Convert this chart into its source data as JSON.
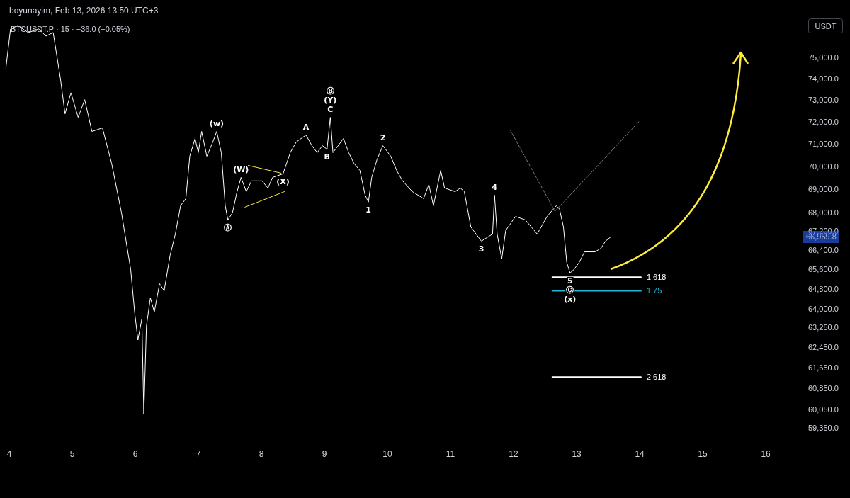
{
  "chart_data": {
    "type": "line",
    "title": "BTCUSDT.P · 15 · −36.0 (−0.05%)",
    "subtitle": "boyunayim, Feb 13, 2026 13:50 UTC+3",
    "marker": "none",
    "log": "y",
    "xlim": [
      "2026-02-03T20:30",
      "2026-02-16T14:00"
    ],
    "xticks": [
      {
        "value": "2026-02-04",
        "label": "4"
      },
      {
        "value": "2026-02-05",
        "label": "5"
      },
      {
        "value": "2026-02-06",
        "label": "6"
      },
      {
        "value": "2026-02-07",
        "label": "7"
      },
      {
        "value": "2026-02-08",
        "label": "8"
      },
      {
        "value": "2026-02-09",
        "label": "9"
      },
      {
        "value": "2026-02-10",
        "label": "10"
      },
      {
        "value": "2026-02-11",
        "label": "11"
      },
      {
        "value": "2026-02-12",
        "label": "12"
      },
      {
        "value": "2026-02-13",
        "label": "13"
      },
      {
        "value": "2026-02-14",
        "label": "14"
      },
      {
        "value": "2026-02-15",
        "label": "15"
      },
      {
        "value": "2026-02-16",
        "label": "16"
      }
    ],
    "ylim": [
      58800,
      77000
    ],
    "yticks": [
      {
        "value": 59350,
        "label": "59,350.0"
      },
      {
        "value": 60050,
        "label": "60,050.0"
      },
      {
        "value": 60850,
        "label": "60,850.0"
      },
      {
        "value": 61650,
        "label": "61,650.0"
      },
      {
        "value": 62450,
        "label": "62,450.0"
      },
      {
        "value": 63250,
        "label": "63,250.0"
      },
      {
        "value": 64000,
        "label": "64,000.0"
      },
      {
        "value": 64800,
        "label": "64,800.0"
      },
      {
        "value": 65600,
        "label": "65,600.0"
      },
      {
        "value": 66400,
        "label": "66,400.0"
      },
      {
        "value": 67200,
        "label": "67,200.0"
      },
      {
        "value": 68000,
        "label": "68,000.0"
      },
      {
        "value": 69000,
        "label": "69,000.0"
      },
      {
        "value": 70000,
        "label": "70,000.0"
      },
      {
        "value": 71000,
        "label": "71,000.0"
      },
      {
        "value": 72000,
        "label": "72,000.0"
      },
      {
        "value": 73000,
        "label": "73,000.0"
      },
      {
        "value": 74000,
        "label": "74,000.0"
      },
      {
        "value": 75000,
        "label": "75,000.0"
      }
    ],
    "ref_lines": [
      {
        "axis": "y",
        "value": 66959.8,
        "label": "66,959.8",
        "color": "#2962ff",
        "line_style": "dotted"
      }
    ],
    "series": [
      {
        "color": "#ffffff",
        "x": [
          "2026-02-03T22:45",
          "2026-02-04T00:30",
          "2026-02-04T03:15",
          "2026-02-04T07:15",
          "2026-02-04T11:15",
          "2026-02-04T14:00",
          "2026-02-04T16:45",
          "2026-02-04T19:30",
          "2026-02-04T21:15",
          "2026-02-04T23:30",
          "2026-02-05T02:15",
          "2026-02-05T04:45",
          "2026-02-05T07:30",
          "2026-02-05T11:30",
          "2026-02-05T15:00",
          "2026-02-05T18:45",
          "2026-02-05T22:15",
          "2026-02-05T23:45",
          "2026-02-06T01:00",
          "2026-02-06T02:30",
          "2026-02-06T03:15",
          "2026-02-06T04:15",
          "2026-02-06T05:45",
          "2026-02-06T07:15",
          "2026-02-06T09:15",
          "2026-02-06T11:00",
          "2026-02-06T13:15",
          "2026-02-06T15:15",
          "2026-02-06T17:15",
          "2026-02-06T19:15",
          "2026-02-06T20:45",
          "2026-02-06T22:45",
          "2026-02-07T00:00",
          "2026-02-07T01:15",
          "2026-02-07T03:15",
          "2026-02-07T05:30",
          "2026-02-07T07:00",
          "2026-02-07T08:45",
          "2026-02-07T10:15",
          "2026-02-07T11:15",
          "2026-02-07T13:00",
          "2026-02-07T14:45",
          "2026-02-07T16:15",
          "2026-02-07T18:15",
          "2026-02-07T20:15",
          "2026-02-08T00:15",
          "2026-02-08T02:30",
          "2026-02-08T04:15",
          "2026-02-08T08:15",
          "2026-02-08T11:00",
          "2026-02-08T13:15",
          "2026-02-08T17:00",
          "2026-02-08T19:15",
          "2026-02-08T21:15",
          "2026-02-08T23:15",
          "2026-02-09T01:00",
          "2026-02-09T02:15",
          "2026-02-09T03:15",
          "2026-02-09T07:15",
          "2026-02-09T09:15",
          "2026-02-09T11:15",
          "2026-02-09T13:30",
          "2026-02-09T15:30",
          "2026-02-09T16:45",
          "2026-02-09T18:00",
          "2026-02-09T20:00",
          "2026-02-09T22:15",
          "2026-02-10T01:15",
          "2026-02-10T03:30",
          "2026-02-10T05:45",
          "2026-02-10T09:30",
          "2026-02-10T13:45",
          "2026-02-10T15:45",
          "2026-02-10T17:30",
          "2026-02-10T20:15",
          "2026-02-10T21:45",
          "2026-02-11T01:45",
          "2026-02-11T03:45",
          "2026-02-11T05:15",
          "2026-02-11T06:30",
          "2026-02-11T07:45",
          "2026-02-11T11:45",
          "2026-02-11T16:00",
          "2026-02-11T16:45",
          "2026-02-11T17:45",
          "2026-02-11T19:30",
          "2026-02-11T21:00",
          "2026-02-12T00:45",
          "2026-02-12T04:30",
          "2026-02-12T09:00",
          "2026-02-12T12:45",
          "2026-02-12T16:15",
          "2026-02-12T17:30",
          "2026-02-12T19:00",
          "2026-02-12T20:15",
          "2026-02-12T21:30",
          "2026-02-12T23:00",
          "2026-02-13T01:00",
          "2026-02-13T03:00",
          "2026-02-13T07:00",
          "2026-02-13T09:15",
          "2026-02-13T11:00",
          "2026-02-13T13:00"
        ],
        "values": [
          74500,
          76350,
          76520,
          76180,
          76350,
          76010,
          76180,
          74000,
          72370,
          73340,
          72210,
          73020,
          71570,
          71730,
          70140,
          67990,
          65600,
          63860,
          62740,
          63580,
          59860,
          63300,
          64430,
          63860,
          65010,
          64720,
          66180,
          67080,
          68290,
          68600,
          70460,
          71250,
          70620,
          71570,
          70460,
          71090,
          71570,
          70620,
          68290,
          67680,
          67990,
          68900,
          69520,
          68900,
          69370,
          69370,
          69060,
          69520,
          69680,
          70620,
          71090,
          71410,
          70930,
          70620,
          70930,
          70770,
          72210,
          70620,
          71250,
          70620,
          70140,
          69830,
          68750,
          68450,
          69520,
          70300,
          70930,
          70460,
          69830,
          69370,
          68900,
          68600,
          69210,
          68290,
          69830,
          69060,
          68900,
          69060,
          68900,
          68140,
          67380,
          66780,
          67080,
          68750,
          67080,
          66040,
          67230,
          67830,
          67680,
          67080,
          67830,
          68290,
          68140,
          67380,
          65890,
          65450,
          65600,
          65890,
          66330,
          66330,
          66480,
          66780,
          66960
        ]
      },
      {
        "color": "#787b86",
        "line_style": "dashed",
        "x": [
          "2026-02-11T22:45",
          "2026-02-12T15:45",
          "2026-02-14T00:00"
        ],
        "values": [
          71630,
          68050,
          72050
        ]
      },
      {
        "color": "#ffeb3b",
        "x": [
          "2026-02-07T19:00",
          "2026-02-08T07:30"
        ],
        "values": [
          70050,
          69710
        ]
      },
      {
        "color": "#ffeb3b",
        "x": [
          "2026-02-07T17:45",
          "2026-02-08T08:45"
        ],
        "values": [
          68230,
          68900
        ]
      },
      {
        "name": "1.618",
        "color": "#ffffff",
        "x": [
          "2026-02-12T14:45",
          "2026-02-14T00:30"
        ],
        "values": [
          65280,
          65280
        ]
      },
      {
        "name": "1.75",
        "color": "#22b5d8",
        "x": [
          "2026-02-12T14:45",
          "2026-02-14T00:30"
        ],
        "values": [
          64720,
          64720
        ]
      },
      {
        "name": "2.618",
        "color": "#ffffff",
        "x": [
          "2026-02-12T14:45",
          "2026-02-14T00:30"
        ],
        "values": [
          61290,
          61290
        ]
      }
    ],
    "annotations": [
      {
        "text": "(w)",
        "x": "2026-02-07T07:00",
        "y": 71570
      },
      {
        "text": "Ⓐ",
        "x": "2026-02-07T11:15",
        "y": 67680
      },
      {
        "text": "(W)",
        "x": "2026-02-07T16:15",
        "y": 69520
      },
      {
        "text": "(X)",
        "x": "2026-02-08T08:15",
        "y": 69680
      },
      {
        "text": "C",
        "x": "2026-02-09T02:15",
        "y": 72210
      },
      {
        "text": "(Y)",
        "x": "2026-02-09T02:15",
        "y": 72210
      },
      {
        "text": "Ⓑ",
        "x": "2026-02-09T02:15",
        "y": 72210
      },
      {
        "text": "A",
        "x": "2026-02-08T17:00",
        "y": 71410
      },
      {
        "text": "B",
        "x": "2026-02-09T01:00",
        "y": 70770
      },
      {
        "text": "2",
        "x": "2026-02-09T22:15",
        "y": 70930
      },
      {
        "text": "1",
        "x": "2026-02-09T16:45",
        "y": 68450
      },
      {
        "text": "4",
        "x": "2026-02-11T16:45",
        "y": 68750
      },
      {
        "text": "3",
        "x": "2026-02-11T11:45",
        "y": 66780
      },
      {
        "text": "5",
        "x": "2026-02-12T21:30",
        "y": 65450
      },
      {
        "text": "Ⓒ",
        "x": "2026-02-12T21:30",
        "y": 65450
      },
      {
        "text": "(x)",
        "x": "2026-02-12T21:30",
        "y": 65450
      },
      "USDT"
    ]
  }
}
